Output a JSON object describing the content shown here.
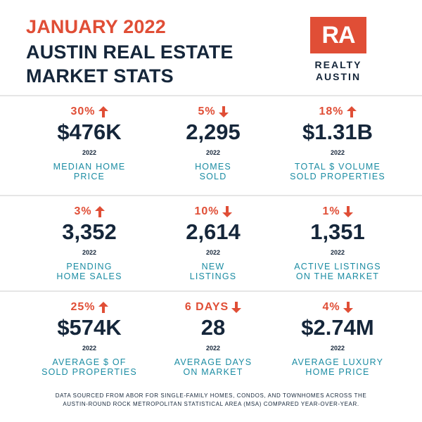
{
  "header": {
    "title_line1": "JANUARY 2022",
    "title_line2": "AUSTIN REAL ESTATE",
    "title_line3": "MARKET STATS"
  },
  "logo": {
    "mark": "RA",
    "line1": "REALTY",
    "line2": "AUSTIN"
  },
  "colors": {
    "accent": "#e04e36",
    "navy": "#15263a",
    "teal": "#1b8ca3"
  },
  "stats": [
    {
      "change": "30%",
      "direction": "up",
      "value": "$476K",
      "year": "2022",
      "label_line1": "MEDIAN HOME",
      "label_line2": "PRICE"
    },
    {
      "change": "5%",
      "direction": "down",
      "value": "2,295",
      "year": "2022",
      "label_line1": "HOMES",
      "label_line2": "SOLD"
    },
    {
      "change": "18%",
      "direction": "up",
      "value": "$1.31B",
      "year": "2022",
      "label_line1": "TOTAL $ VOLUME",
      "label_line2": "SOLD PROPERTIES"
    },
    {
      "change": "3%",
      "direction": "up",
      "value": "3,352",
      "year": "2022",
      "label_line1": "PENDING",
      "label_line2": "HOME SALES"
    },
    {
      "change": "10%",
      "direction": "down",
      "value": "2,614",
      "year": "2022",
      "label_line1": "NEW",
      "label_line2": "LISTINGS"
    },
    {
      "change": "1%",
      "direction": "down",
      "value": "1,351",
      "year": "2022",
      "label_line1": "ACTIVE LISTINGS",
      "label_line2": "ON THE MARKET"
    },
    {
      "change": "25%",
      "direction": "up",
      "value": "$574K",
      "year": "2022",
      "label_line1": "AVERAGE $ OF",
      "label_line2": "SOLD PROPERTIES"
    },
    {
      "change": "6 DAYS",
      "direction": "down",
      "value": "28",
      "year": "2022",
      "label_line1": "AVERAGE DAYS",
      "label_line2": "ON MARKET"
    },
    {
      "change": "4%",
      "direction": "down",
      "value": "$2.74M",
      "year": "2022",
      "label_line1": "AVERAGE LUXURY",
      "label_line2": "HOME PRICE"
    }
  ],
  "footer": {
    "line1": "DATA SOURCED FROM ABOR FOR SINGLE-FAMILY HOMES, CONDOS, AND TOWNHOMES ACROSS THE",
    "line2": "AUSTIN-ROUND ROCK METROPOLITAN STATISTICAL AREA (MSA) COMPARED YEAR-OVER-YEAR."
  }
}
